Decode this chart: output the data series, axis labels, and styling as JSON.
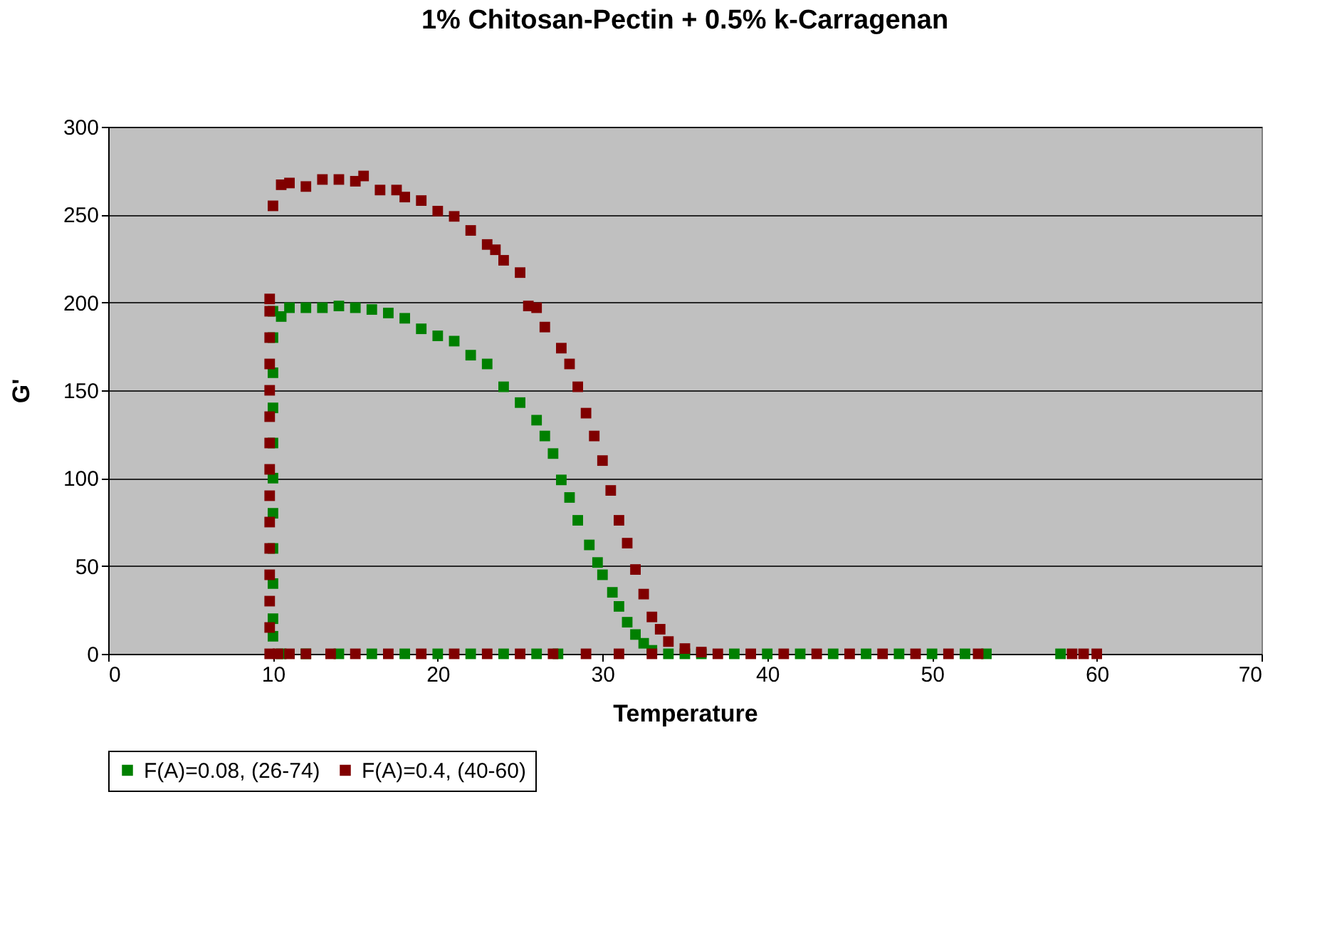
{
  "chart_data": {
    "type": "scatter",
    "title": "1% Chitosan-Pectin + 0.5% k-Carragenan",
    "xlabel": "Temperature",
    "ylabel": "G'",
    "xlim": [
      0,
      70
    ],
    "xticks": [
      0,
      10,
      20,
      30,
      40,
      50,
      60,
      70
    ],
    "ylim": [
      0,
      300
    ],
    "yticks": [
      0,
      50,
      100,
      150,
      200,
      250,
      300
    ],
    "grid": "y",
    "legend": "bottom",
    "marker": "square",
    "series": [
      {
        "name": "F(A)=0.08, (26-74)",
        "color": "#008000",
        "x": [
          10,
          10,
          10,
          10,
          10,
          10,
          10,
          10,
          10,
          10,
          10,
          10.5,
          11,
          12,
          13,
          14,
          15,
          16,
          17,
          18,
          19,
          20,
          21,
          22,
          23,
          24,
          25,
          26,
          26.5,
          27,
          27.5,
          28,
          28.5,
          29.2,
          29.7,
          30,
          30.6,
          31,
          31.5,
          32,
          32.5,
          33,
          34,
          35,
          10.5,
          12,
          14,
          16,
          18,
          20,
          22,
          24,
          26,
          27.3,
          36,
          38,
          40,
          42,
          44,
          46,
          48,
          50,
          52,
          53.3,
          57.8
        ],
        "values": [
          10,
          20,
          40,
          60,
          80,
          100,
          120,
          140,
          160,
          180,
          195,
          192,
          197,
          197,
          197,
          198,
          197,
          196,
          194,
          191,
          185,
          181,
          178,
          170,
          165,
          152,
          143,
          133,
          124,
          114,
          99,
          89,
          76,
          62,
          52,
          45,
          35,
          27,
          18,
          11,
          6,
          2,
          0,
          0,
          0,
          0,
          0,
          0,
          0,
          0,
          0,
          0,
          0,
          0,
          0,
          0,
          0,
          0,
          0,
          0,
          0,
          0,
          0,
          0,
          0
        ]
      },
      {
        "name": "F(A)=0.4, (40-60)",
        "color": "#800000",
        "x": [
          9.8,
          9.8,
          9.8,
          9.8,
          9.8,
          9.8,
          9.8,
          9.8,
          9.8,
          9.8,
          9.8,
          9.8,
          9.8,
          9.8,
          9.8,
          10,
          10.5,
          11,
          12,
          13,
          14,
          15,
          15.5,
          16.5,
          17.5,
          18,
          19,
          20,
          21,
          22,
          23,
          23.5,
          24,
          25,
          25.5,
          26,
          26.5,
          27.5,
          28,
          28.5,
          29,
          29.5,
          30,
          30.5,
          31,
          31.5,
          32,
          32.5,
          33,
          33.5,
          34,
          35,
          36,
          37,
          10.3,
          11,
          12,
          13.5,
          15,
          17,
          19,
          21,
          23,
          25,
          27,
          29,
          31,
          33,
          39,
          41,
          43,
          45,
          47,
          49,
          51,
          52.8,
          58.5,
          59.2,
          60
        ],
        "values": [
          0,
          15,
          30,
          45,
          60,
          75,
          90,
          105,
          120,
          135,
          150,
          165,
          180,
          195,
          202,
          255,
          267,
          268,
          266,
          270,
          270,
          269,
          272,
          264,
          264,
          260,
          258,
          252,
          249,
          241,
          233,
          230,
          224,
          217,
          198,
          197,
          186,
          174,
          165,
          152,
          137,
          124,
          110,
          93,
          76,
          63,
          48,
          34,
          21,
          14,
          7,
          3,
          1,
          0,
          0,
          0,
          0,
          0,
          0,
          0,
          0,
          0,
          0,
          0,
          0,
          0,
          0,
          0,
          0,
          0,
          0,
          0,
          0,
          0,
          0,
          0,
          0,
          0,
          0
        ]
      }
    ]
  }
}
